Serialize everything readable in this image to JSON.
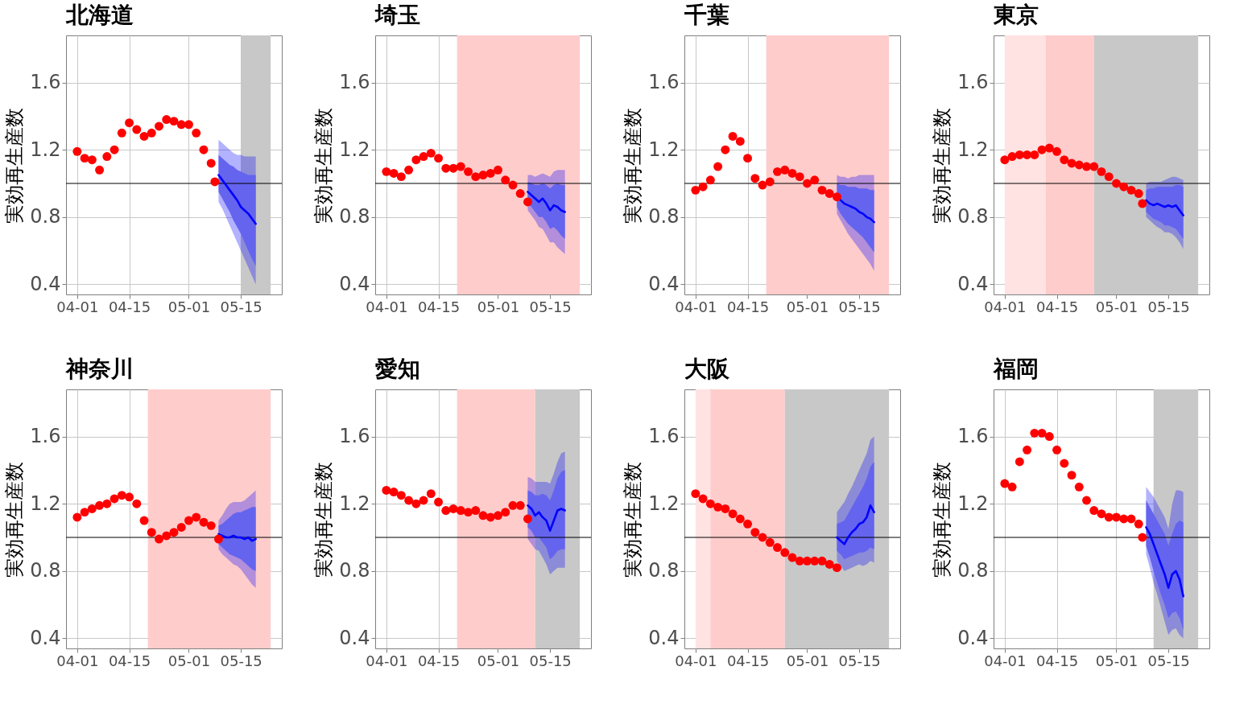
{
  "chart_data": [
    {
      "type": "scatter",
      "title": "北海道",
      "ylabel": "実効再生産数",
      "xlim": [
        "--03-29",
        "--05-26"
      ],
      "ylim": [
        0.34,
        1.88
      ],
      "xticks": [
        {
          "value": "--04-01",
          "label": "04-01"
        },
        {
          "value": "--04-15",
          "label": "04-15"
        },
        {
          "value": "--05-01",
          "label": "05-01"
        },
        {
          "value": "--05-15",
          "label": "05-15"
        }
      ],
      "yticks": [
        0.4,
        0.8,
        1.2,
        1.6
      ],
      "grid": true,
      "marker": "circle",
      "bands": [
        {
          "axis": "x",
          "from": "--05-15",
          "to": "--05-23",
          "color": "#c8c8c8"
        }
      ],
      "ref_lines": [
        {
          "axis": "y",
          "value": 1,
          "color": "#000000"
        }
      ],
      "series": [
        {
          "color": "#ff0000",
          "x": [
            "--04-01",
            "--04-03",
            "--04-05",
            "--04-07",
            "--04-09",
            "--04-11",
            "--04-13",
            "--04-15",
            "--04-17",
            "--04-19",
            "--04-21",
            "--04-23",
            "--04-25",
            "--04-27",
            "--04-29",
            "--05-01",
            "--05-03",
            "--05-05",
            "--05-07",
            "--05-08"
          ],
          "values": [
            1.19,
            1.15,
            1.14,
            1.08,
            1.16,
            1.2,
            1.3,
            1.36,
            1.32,
            1.28,
            1.3,
            1.34,
            1.38,
            1.37,
            1.35,
            1.35,
            1.3,
            1.2,
            1.12,
            1.01
          ]
        },
        {
          "type": "line",
          "marker": "none",
          "color": "#0000ff",
          "x": [
            "--05-09",
            "--05-10",
            "--05-11",
            "--05-12",
            "--05-13",
            "--05-14",
            "--05-15",
            "--05-16",
            "--05-17",
            "--05-18",
            "--05-19"
          ],
          "values": [
            1.05,
            1.02,
            0.99,
            0.96,
            0.93,
            0.9,
            0.86,
            0.84,
            0.82,
            0.79,
            0.76
          ],
          "lower": [
            0.89,
            0.85,
            0.8,
            0.75,
            0.7,
            0.65,
            0.6,
            0.55,
            0.5,
            0.45,
            0.4
          ],
          "upper": [
            1.26,
            1.24,
            1.22,
            1.2,
            1.18,
            1.17,
            1.17,
            1.16,
            1.16,
            1.16,
            1.16
          ]
        },
        {
          "type": "line",
          "marker": "none",
          "color": "#6464ee",
          "x": [
            "--05-09",
            "--05-10",
            "--05-11",
            "--05-12",
            "--05-13",
            "--05-14",
            "--05-15",
            "--05-16",
            "--05-17",
            "--05-18",
            "--05-19"
          ],
          "values": [
            null,
            null,
            null,
            null,
            null,
            null,
            null,
            null,
            null,
            null,
            null
          ],
          "lower": [
            0.95,
            0.91,
            0.87,
            0.83,
            0.78,
            0.74,
            0.7,
            0.65,
            0.6,
            0.55,
            0.51
          ],
          "upper": [
            1.17,
            1.15,
            1.13,
            1.11,
            1.1,
            1.08,
            1.07,
            1.06,
            1.05,
            1.05,
            1.05
          ]
        }
      ]
    },
    {
      "type": "scatter",
      "title": "埼玉",
      "ylabel": "実効再生産数",
      "xlim": [
        "--03-29",
        "--05-26"
      ],
      "ylim": [
        0.34,
        1.88
      ],
      "xticks": [
        {
          "value": "--04-01",
          "label": "04-01"
        },
        {
          "value": "--04-15",
          "label": "04-15"
        },
        {
          "value": "--05-01",
          "label": "05-01"
        },
        {
          "value": "--05-15",
          "label": "05-15"
        }
      ],
      "yticks": [
        0.4,
        0.8,
        1.2,
        1.6
      ],
      "grid": true,
      "marker": "circle",
      "bands": [
        {
          "axis": "x",
          "from": "--04-20",
          "to": "--05-23",
          "color": "#ffcccc"
        }
      ],
      "ref_lines": [
        {
          "axis": "y",
          "value": 1,
          "color": "#000000"
        }
      ],
      "series": [
        {
          "color": "#ff0000",
          "x": [
            "--04-01",
            "--04-03",
            "--04-05",
            "--04-07",
            "--04-09",
            "--04-11",
            "--04-13",
            "--04-15",
            "--04-17",
            "--04-19",
            "--04-21",
            "--04-23",
            "--04-25",
            "--04-27",
            "--04-29",
            "--05-01",
            "--05-03",
            "--05-05",
            "--05-07",
            "--05-09"
          ],
          "values": [
            1.07,
            1.06,
            1.04,
            1.08,
            1.14,
            1.16,
            1.18,
            1.15,
            1.09,
            1.09,
            1.1,
            1.07,
            1.04,
            1.05,
            1.06,
            1.08,
            1.02,
            0.99,
            0.94,
            0.89
          ]
        },
        {
          "type": "line",
          "marker": "none",
          "color": "#0000ff",
          "x": [
            "--05-09",
            "--05-10",
            "--05-11",
            "--05-12",
            "--05-13",
            "--05-14",
            "--05-15",
            "--05-16",
            "--05-17",
            "--05-18",
            "--05-19"
          ],
          "values": [
            0.95,
            0.93,
            0.91,
            0.89,
            0.91,
            0.88,
            0.84,
            0.87,
            0.86,
            0.84,
            0.83
          ],
          "lower": [
            0.84,
            0.81,
            0.78,
            0.74,
            0.73,
            0.69,
            0.65,
            0.65,
            0.62,
            0.6,
            0.58
          ],
          "upper": [
            1.05,
            1.05,
            1.04,
            1.05,
            1.06,
            1.05,
            1.04,
            1.07,
            1.08,
            1.08,
            1.08
          ]
        },
        {
          "type": "line",
          "marker": "none",
          "color": "#6464ee",
          "x": [
            "--05-09",
            "--05-10",
            "--05-11",
            "--05-12",
            "--05-13",
            "--05-14",
            "--05-15",
            "--05-16",
            "--05-17",
            "--05-18",
            "--05-19"
          ],
          "values": [
            null,
            null,
            null,
            null,
            null,
            null,
            null,
            null,
            null,
            null,
            null
          ],
          "lower": [
            0.88,
            0.86,
            0.83,
            0.8,
            0.8,
            0.77,
            0.73,
            0.74,
            0.72,
            0.69,
            0.67
          ],
          "upper": [
            1.01,
            1.0,
            0.99,
            0.99,
            1.0,
            0.99,
            0.97,
            0.99,
            1.0,
            0.99,
            0.99
          ]
        }
      ]
    },
    {
      "type": "scatter",
      "title": "千葉",
      "ylabel": "実効再生産数",
      "xlim": [
        "--03-29",
        "--05-26"
      ],
      "ylim": [
        0.34,
        1.88
      ],
      "xticks": [
        {
          "value": "--04-01",
          "label": "04-01"
        },
        {
          "value": "--04-15",
          "label": "04-15"
        },
        {
          "value": "--05-01",
          "label": "05-01"
        },
        {
          "value": "--05-15",
          "label": "05-15"
        }
      ],
      "yticks": [
        0.4,
        0.8,
        1.2,
        1.6
      ],
      "grid": true,
      "marker": "circle",
      "bands": [
        {
          "axis": "x",
          "from": "--04-20",
          "to": "--05-23",
          "color": "#ffcccc"
        }
      ],
      "ref_lines": [
        {
          "axis": "y",
          "value": 1,
          "color": "#000000"
        }
      ],
      "series": [
        {
          "color": "#ff0000",
          "x": [
            "--04-01",
            "--04-03",
            "--04-05",
            "--04-07",
            "--04-09",
            "--04-11",
            "--04-13",
            "--04-15",
            "--04-17",
            "--04-19",
            "--04-21",
            "--04-23",
            "--04-25",
            "--04-27",
            "--04-29",
            "--05-01",
            "--05-03",
            "--05-05",
            "--05-07",
            "--05-09"
          ],
          "values": [
            0.96,
            0.98,
            1.02,
            1.1,
            1.2,
            1.28,
            1.25,
            1.15,
            1.03,
            0.99,
            1.01,
            1.07,
            1.08,
            1.06,
            1.04,
            1.0,
            1.02,
            0.96,
            0.94,
            0.92
          ]
        },
        {
          "type": "line",
          "marker": "none",
          "color": "#0000ff",
          "x": [
            "--05-09",
            "--05-10",
            "--05-11",
            "--05-12",
            "--05-13",
            "--05-14",
            "--05-15",
            "--05-16",
            "--05-17",
            "--05-18",
            "--05-19"
          ],
          "values": [
            0.92,
            0.9,
            0.88,
            0.87,
            0.86,
            0.85,
            0.83,
            0.82,
            0.8,
            0.79,
            0.77
          ],
          "lower": [
            0.82,
            0.78,
            0.74,
            0.7,
            0.67,
            0.64,
            0.61,
            0.58,
            0.55,
            0.52,
            0.48
          ],
          "upper": [
            1.05,
            1.04,
            1.04,
            1.03,
            1.04,
            1.04,
            1.05,
            1.05,
            1.05,
            1.05,
            1.05
          ]
        },
        {
          "type": "line",
          "marker": "none",
          "color": "#6464ee",
          "x": [
            "--05-09",
            "--05-10",
            "--05-11",
            "--05-12",
            "--05-13",
            "--05-14",
            "--05-15",
            "--05-16",
            "--05-17",
            "--05-18",
            "--05-19"
          ],
          "values": [
            null,
            null,
            null,
            null,
            null,
            null,
            null,
            null,
            null,
            null,
            null
          ],
          "lower": [
            0.86,
            0.82,
            0.79,
            0.76,
            0.74,
            0.72,
            0.7,
            0.68,
            0.65,
            0.62,
            0.59
          ],
          "upper": [
            1.0,
            0.99,
            0.99,
            0.98,
            0.98,
            0.98,
            0.97,
            0.97,
            0.97,
            0.96,
            0.96
          ]
        }
      ]
    },
    {
      "type": "scatter",
      "title": "東京",
      "ylabel": "実効再生産数",
      "xlim": [
        "--03-29",
        "--05-26"
      ],
      "ylim": [
        0.34,
        1.88
      ],
      "xticks": [
        {
          "value": "--04-01",
          "label": "04-01"
        },
        {
          "value": "--04-15",
          "label": "04-15"
        },
        {
          "value": "--05-01",
          "label": "05-01"
        },
        {
          "value": "--05-15",
          "label": "05-15"
        }
      ],
      "yticks": [
        0.4,
        0.8,
        1.2,
        1.6
      ],
      "grid": true,
      "marker": "circle",
      "bands": [
        {
          "axis": "x",
          "from": "--04-01",
          "to": "--04-12",
          "color": "#ffe2e2"
        },
        {
          "axis": "x",
          "from": "--04-12",
          "to": "--04-25",
          "color": "#ffcccc"
        },
        {
          "axis": "x",
          "from": "--04-25",
          "to": "--05-23",
          "color": "#c8c8c8"
        }
      ],
      "ref_lines": [
        {
          "axis": "y",
          "value": 1,
          "color": "#000000"
        }
      ],
      "series": [
        {
          "color": "#ff0000",
          "x": [
            "--04-01",
            "--04-03",
            "--04-05",
            "--04-07",
            "--04-09",
            "--04-11",
            "--04-13",
            "--04-15",
            "--04-17",
            "--04-19",
            "--04-21",
            "--04-23",
            "--04-25",
            "--04-27",
            "--04-29",
            "--05-01",
            "--05-03",
            "--05-05",
            "--05-07",
            "--05-08"
          ],
          "values": [
            1.14,
            1.16,
            1.17,
            1.17,
            1.17,
            1.2,
            1.21,
            1.19,
            1.14,
            1.12,
            1.11,
            1.1,
            1.1,
            1.07,
            1.04,
            1.0,
            0.98,
            0.96,
            0.94,
            0.88
          ]
        },
        {
          "type": "line",
          "marker": "none",
          "color": "#0000ff",
          "x": [
            "--05-09",
            "--05-10",
            "--05-11",
            "--05-12",
            "--05-13",
            "--05-14",
            "--05-15",
            "--05-16",
            "--05-17",
            "--05-18",
            "--05-19"
          ],
          "values": [
            0.9,
            0.88,
            0.87,
            0.88,
            0.87,
            0.86,
            0.87,
            0.86,
            0.87,
            0.84,
            0.81
          ],
          "lower": [
            0.8,
            0.78,
            0.76,
            0.74,
            0.73,
            0.71,
            0.71,
            0.7,
            0.68,
            0.65,
            0.61
          ],
          "upper": [
            1.0,
            1.01,
            1.01,
            1.01,
            1.01,
            1.02,
            1.03,
            1.04,
            1.04,
            1.03,
            1.02
          ]
        },
        {
          "type": "line",
          "marker": "none",
          "color": "#6464ee",
          "x": [
            "--05-09",
            "--05-10",
            "--05-11",
            "--05-12",
            "--05-13",
            "--05-14",
            "--05-15",
            "--05-16",
            "--05-17",
            "--05-18",
            "--05-19"
          ],
          "values": [
            null,
            null,
            null,
            null,
            null,
            null,
            null,
            null,
            null,
            null,
            null
          ],
          "lower": [
            0.83,
            0.81,
            0.79,
            0.78,
            0.77,
            0.75,
            0.75,
            0.74,
            0.73,
            0.7,
            0.67
          ],
          "upper": [
            0.96,
            0.97,
            0.97,
            0.98,
            0.98,
            0.98,
            0.98,
            0.98,
            0.99,
            0.99,
            0.98
          ]
        }
      ]
    },
    {
      "type": "scatter",
      "title": "神奈川",
      "ylabel": "実効再生産数",
      "xlim": [
        "--03-29",
        "--05-26"
      ],
      "ylim": [
        0.34,
        1.88
      ],
      "xticks": [
        {
          "value": "--04-01",
          "label": "04-01"
        },
        {
          "value": "--04-15",
          "label": "04-15"
        },
        {
          "value": "--05-01",
          "label": "05-01"
        },
        {
          "value": "--05-15",
          "label": "05-15"
        }
      ],
      "yticks": [
        0.4,
        0.8,
        1.2,
        1.6
      ],
      "grid": true,
      "marker": "circle",
      "bands": [
        {
          "axis": "x",
          "from": "--04-20",
          "to": "--05-23",
          "color": "#ffcccc"
        }
      ],
      "ref_lines": [
        {
          "axis": "y",
          "value": 1,
          "color": "#000000"
        }
      ],
      "series": [
        {
          "color": "#ff0000",
          "x": [
            "--04-01",
            "--04-03",
            "--04-05",
            "--04-07",
            "--04-09",
            "--04-11",
            "--04-13",
            "--04-15",
            "--04-17",
            "--04-19",
            "--04-21",
            "--04-23",
            "--04-25",
            "--04-27",
            "--04-29",
            "--05-01",
            "--05-03",
            "--05-05",
            "--05-07",
            "--05-09"
          ],
          "values": [
            1.12,
            1.15,
            1.17,
            1.19,
            1.2,
            1.23,
            1.25,
            1.24,
            1.2,
            1.1,
            1.03,
            0.99,
            1.01,
            1.03,
            1.06,
            1.1,
            1.12,
            1.09,
            1.07,
            0.99
          ]
        },
        {
          "type": "line",
          "marker": "none",
          "color": "#0000ff",
          "x": [
            "--05-09",
            "--05-10",
            "--05-11",
            "--05-12",
            "--05-13",
            "--05-14",
            "--05-15",
            "--05-16",
            "--05-17",
            "--05-18",
            "--05-19"
          ],
          "values": [
            1.02,
            1.01,
            1.0,
            1.0,
            1.01,
            1.0,
            1.0,
            0.99,
            1.0,
            0.98,
            0.99
          ],
          "lower": [
            0.93,
            0.9,
            0.88,
            0.86,
            0.84,
            0.83,
            0.81,
            0.78,
            0.75,
            0.72,
            0.7
          ],
          "upper": [
            1.1,
            1.13,
            1.17,
            1.2,
            1.21,
            1.21,
            1.21,
            1.22,
            1.24,
            1.26,
            1.28
          ]
        },
        {
          "type": "line",
          "marker": "none",
          "color": "#6464ee",
          "x": [
            "--05-09",
            "--05-10",
            "--05-11",
            "--05-12",
            "--05-13",
            "--05-14",
            "--05-15",
            "--05-16",
            "--05-17",
            "--05-18",
            "--05-19"
          ],
          "values": [
            null,
            null,
            null,
            null,
            null,
            null,
            null,
            null,
            null,
            null,
            null
          ],
          "lower": [
            0.96,
            0.94,
            0.92,
            0.9,
            0.89,
            0.88,
            0.87,
            0.85,
            0.83,
            0.81,
            0.8
          ],
          "upper": [
            1.07,
            1.08,
            1.1,
            1.12,
            1.14,
            1.15,
            1.15,
            1.16,
            1.17,
            1.18,
            1.18
          ]
        }
      ]
    },
    {
      "type": "scatter",
      "title": "愛知",
      "ylabel": "実効再生産数",
      "xlim": [
        "--03-29",
        "--05-26"
      ],
      "ylim": [
        0.34,
        1.88
      ],
      "xticks": [
        {
          "value": "--04-01",
          "label": "04-01"
        },
        {
          "value": "--04-15",
          "label": "04-15"
        },
        {
          "value": "--05-01",
          "label": "05-01"
        },
        {
          "value": "--05-15",
          "label": "05-15"
        }
      ],
      "yticks": [
        0.4,
        0.8,
        1.2,
        1.6
      ],
      "grid": true,
      "marker": "circle",
      "bands": [
        {
          "axis": "x",
          "from": "--04-20",
          "to": "--05-11",
          "color": "#ffcccc"
        },
        {
          "axis": "x",
          "from": "--05-11",
          "to": "--05-23",
          "color": "#c8c8c8"
        }
      ],
      "ref_lines": [
        {
          "axis": "y",
          "value": 1,
          "color": "#000000"
        }
      ],
      "series": [
        {
          "color": "#ff0000",
          "x": [
            "--04-01",
            "--04-03",
            "--04-05",
            "--04-07",
            "--04-09",
            "--04-11",
            "--04-13",
            "--04-15",
            "--04-17",
            "--04-19",
            "--04-21",
            "--04-23",
            "--04-25",
            "--04-27",
            "--04-29",
            "--05-01",
            "--05-03",
            "--05-05",
            "--05-07",
            "--05-09"
          ],
          "values": [
            1.28,
            1.27,
            1.25,
            1.22,
            1.2,
            1.22,
            1.26,
            1.21,
            1.16,
            1.17,
            1.16,
            1.15,
            1.16,
            1.13,
            1.12,
            1.13,
            1.15,
            1.19,
            1.19,
            1.11
          ]
        },
        {
          "type": "line",
          "marker": "none",
          "color": "#0000ff",
          "x": [
            "--05-09",
            "--05-10",
            "--05-11",
            "--05-12",
            "--05-13",
            "--05-14",
            "--05-15",
            "--05-16",
            "--05-17",
            "--05-18",
            "--05-19"
          ],
          "values": [
            1.19,
            1.17,
            1.13,
            1.15,
            1.12,
            1.1,
            1.04,
            1.1,
            1.16,
            1.17,
            1.16
          ],
          "lower": [
            0.99,
            0.96,
            0.93,
            0.92,
            0.88,
            0.84,
            0.78,
            0.8,
            0.82,
            0.82,
            0.82
          ],
          "upper": [
            1.36,
            1.35,
            1.33,
            1.33,
            1.33,
            1.33,
            1.32,
            1.38,
            1.45,
            1.5,
            1.51
          ]
        },
        {
          "type": "line",
          "marker": "none",
          "color": "#6464ee",
          "x": [
            "--05-09",
            "--05-10",
            "--05-11",
            "--05-12",
            "--05-13",
            "--05-14",
            "--05-15",
            "--05-16",
            "--05-17",
            "--05-18",
            "--05-19"
          ],
          "values": [
            null,
            null,
            null,
            null,
            null,
            null,
            null,
            null,
            null,
            null,
            null
          ],
          "lower": [
            1.06,
            1.04,
            1.0,
            1.0,
            0.97,
            0.94,
            0.87,
            0.89,
            0.92,
            0.93,
            0.93
          ],
          "upper": [
            1.28,
            1.27,
            1.25,
            1.25,
            1.26,
            1.25,
            1.22,
            1.28,
            1.35,
            1.39,
            1.4
          ]
        }
      ]
    },
    {
      "type": "scatter",
      "title": "大阪",
      "ylabel": "実効再生産数",
      "xlim": [
        "--03-29",
        "--05-26"
      ],
      "ylim": [
        0.34,
        1.88
      ],
      "xticks": [
        {
          "value": "--04-01",
          "label": "04-01"
        },
        {
          "value": "--04-15",
          "label": "04-15"
        },
        {
          "value": "--05-01",
          "label": "05-01"
        },
        {
          "value": "--05-15",
          "label": "05-15"
        }
      ],
      "yticks": [
        0.4,
        0.8,
        1.2,
        1.6
      ],
      "grid": true,
      "marker": "circle",
      "bands": [
        {
          "axis": "x",
          "from": "--04-01",
          "to": "--04-05",
          "color": "#ffe2e2"
        },
        {
          "axis": "x",
          "from": "--04-05",
          "to": "--04-25",
          "color": "#ffcccc"
        },
        {
          "axis": "x",
          "from": "--04-25",
          "to": "--05-23",
          "color": "#c8c8c8"
        }
      ],
      "ref_lines": [
        {
          "axis": "y",
          "value": 1,
          "color": "#000000"
        }
      ],
      "series": [
        {
          "color": "#ff0000",
          "x": [
            "--04-01",
            "--04-03",
            "--04-05",
            "--04-07",
            "--04-09",
            "--04-11",
            "--04-13",
            "--04-15",
            "--04-17",
            "--04-19",
            "--04-21",
            "--04-23",
            "--04-25",
            "--04-27",
            "--04-29",
            "--05-01",
            "--05-03",
            "--05-05",
            "--05-07",
            "--05-09"
          ],
          "values": [
            1.26,
            1.23,
            1.2,
            1.18,
            1.17,
            1.14,
            1.11,
            1.08,
            1.03,
            1.0,
            0.97,
            0.94,
            0.91,
            0.88,
            0.86,
            0.86,
            0.86,
            0.86,
            0.84,
            0.82
          ]
        },
        {
          "type": "line",
          "marker": "none",
          "color": "#0000ff",
          "x": [
            "--05-09",
            "--05-10",
            "--05-11",
            "--05-12",
            "--05-13",
            "--05-14",
            "--05-15",
            "--05-16",
            "--05-17",
            "--05-18",
            "--05-19"
          ],
          "values": [
            1.0,
            0.98,
            0.96,
            1.0,
            1.03,
            1.05,
            1.08,
            1.09,
            1.12,
            1.19,
            1.15
          ],
          "lower": [
            0.86,
            0.83,
            0.8,
            0.81,
            0.82,
            0.83,
            0.84,
            0.83,
            0.84,
            0.86,
            0.85
          ],
          "upper": [
            1.15,
            1.18,
            1.21,
            1.26,
            1.3,
            1.35,
            1.4,
            1.45,
            1.5,
            1.58,
            1.6
          ]
        },
        {
          "type": "line",
          "marker": "none",
          "color": "#6464ee",
          "x": [
            "--05-09",
            "--05-10",
            "--05-11",
            "--05-12",
            "--05-13",
            "--05-14",
            "--05-15",
            "--05-16",
            "--05-17",
            "--05-18",
            "--05-19"
          ],
          "values": [
            null,
            null,
            null,
            null,
            null,
            null,
            null,
            null,
            null,
            null,
            null
          ],
          "lower": [
            0.92,
            0.9,
            0.87,
            0.88,
            0.89,
            0.9,
            0.91,
            0.91,
            0.92,
            0.94,
            0.93
          ],
          "upper": [
            1.08,
            1.09,
            1.1,
            1.14,
            1.18,
            1.22,
            1.26,
            1.3,
            1.35,
            1.42,
            1.45
          ]
        }
      ]
    },
    {
      "type": "scatter",
      "title": "福岡",
      "ylabel": "実効再生産数",
      "xlim": [
        "--03-29",
        "--05-26"
      ],
      "ylim": [
        0.34,
        1.88
      ],
      "xticks": [
        {
          "value": "--04-01",
          "label": "04-01"
        },
        {
          "value": "--04-15",
          "label": "04-15"
        },
        {
          "value": "--05-01",
          "label": "05-01"
        },
        {
          "value": "--05-15",
          "label": "05-15"
        }
      ],
      "yticks": [
        0.4,
        0.8,
        1.2,
        1.6
      ],
      "grid": true,
      "marker": "circle",
      "bands": [
        {
          "axis": "x",
          "from": "--05-11",
          "to": "--05-23",
          "color": "#c8c8c8"
        }
      ],
      "ref_lines": [
        {
          "axis": "y",
          "value": 1,
          "color": "#000000"
        }
      ],
      "series": [
        {
          "color": "#ff0000",
          "x": [
            "--04-01",
            "--04-03",
            "--04-05",
            "--04-07",
            "--04-09",
            "--04-11",
            "--04-13",
            "--04-15",
            "--04-17",
            "--04-19",
            "--04-21",
            "--04-23",
            "--04-25",
            "--04-27",
            "--04-29",
            "--05-01",
            "--05-03",
            "--05-05",
            "--05-07",
            "--05-08"
          ],
          "values": [
            1.32,
            1.3,
            1.45,
            1.52,
            1.62,
            1.62,
            1.6,
            1.52,
            1.44,
            1.37,
            1.3,
            1.22,
            1.16,
            1.14,
            1.12,
            1.12,
            1.11,
            1.11,
            1.08,
            1.0
          ]
        },
        {
          "type": "line",
          "marker": "none",
          "color": "#0000ff",
          "x": [
            "--05-09",
            "--05-10",
            "--05-11",
            "--05-12",
            "--05-13",
            "--05-14",
            "--05-15",
            "--05-16",
            "--05-17",
            "--05-18",
            "--05-19"
          ],
          "values": [
            1.06,
            1.02,
            0.96,
            0.9,
            0.84,
            0.78,
            0.7,
            0.78,
            0.8,
            0.75,
            0.65
          ],
          "lower": [
            0.9,
            0.82,
            0.73,
            0.66,
            0.58,
            0.5,
            0.42,
            0.45,
            0.46,
            0.42,
            0.4
          ],
          "upper": [
            1.3,
            1.27,
            1.24,
            1.2,
            1.16,
            1.12,
            1.05,
            1.2,
            1.28,
            1.28,
            1.27
          ]
        },
        {
          "type": "line",
          "marker": "none",
          "color": "#6464ee",
          "x": [
            "--05-09",
            "--05-10",
            "--05-11",
            "--05-12",
            "--05-13",
            "--05-14",
            "--05-15",
            "--05-16",
            "--05-17",
            "--05-18",
            "--05-19"
          ],
          "values": [
            null,
            null,
            null,
            null,
            null,
            null,
            null,
            null,
            null,
            null,
            null
          ],
          "lower": [
            0.95,
            0.88,
            0.8,
            0.73,
            0.66,
            0.6,
            0.52,
            0.55,
            0.56,
            0.52,
            0.45
          ],
          "upper": [
            1.22,
            1.18,
            1.14,
            1.1,
            1.06,
            1.02,
            0.95,
            1.02,
            1.08,
            1.1,
            1.09
          ]
        }
      ]
    }
  ]
}
